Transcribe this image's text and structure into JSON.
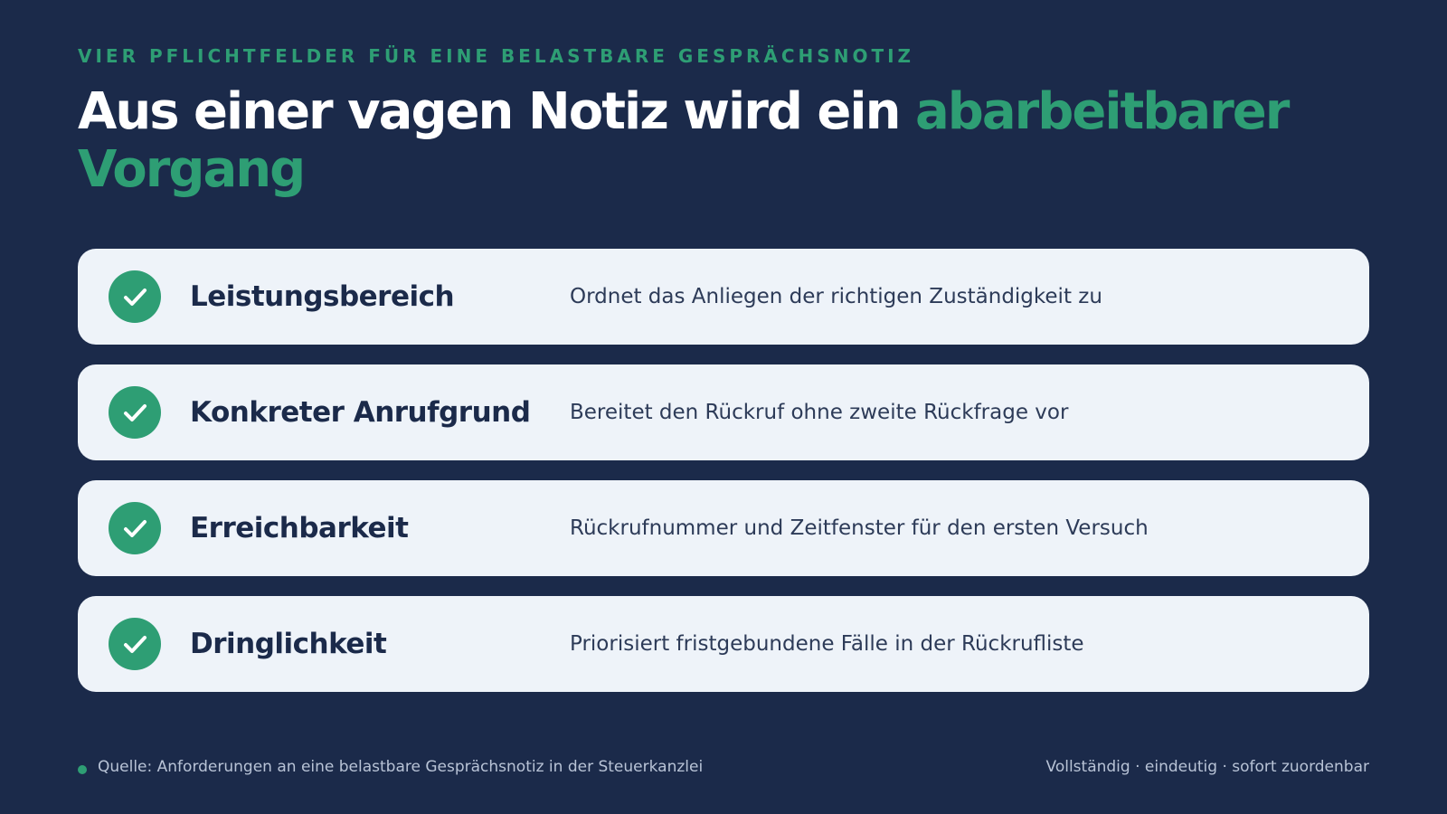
{
  "header": {
    "eyebrow": "VIER PFLICHTFELDER FÜR EINE BELASTBARE GESPRÄCHSNOTIZ",
    "title_plain": "Aus einer vagen Notiz wird ein",
    "title_highlight": "abarbeitbarer Vorgang"
  },
  "items": [
    {
      "label": "Leistungsbereich",
      "description": "Ordnet das Anliegen der richtigen Zuständigkeit zu"
    },
    {
      "label": "Konkreter Anrufgrund",
      "description": "Bereitet den Rückruf ohne zweite Rückfrage vor"
    },
    {
      "label": "Erreichbarkeit",
      "description": "Rückrufnummer und Zeitfenster für den ersten Versuch"
    },
    {
      "label": "Dringlichkeit",
      "description": "Priorisiert fristgebundene Fälle in der Rückrufliste"
    }
  ],
  "footer": {
    "source": "Quelle: Anforderungen an eine belastbare Gesprächsnotiz in der Steuerkanzlei",
    "tagline": "Vollständig · eindeutig · sofort zuordenbar"
  }
}
